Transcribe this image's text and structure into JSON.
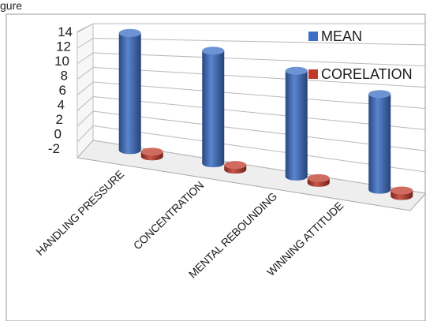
{
  "figure": {
    "caption": "gure"
  },
  "chart_data": {
    "type": "bar",
    "title": "",
    "xlabel": "",
    "ylabel": "",
    "ylim": [
      -2,
      14
    ],
    "yticks": [
      "14",
      "12",
      "10",
      "8",
      "6",
      "4",
      "2",
      "0",
      "-2"
    ],
    "categories": [
      "HANDLING PRESSURE",
      "CONCENTRATION",
      "MENTAL REBOUNDING",
      "WINNING ATTITUDE"
    ],
    "series": [
      {
        "name": "MEAN",
        "color": "#3d6fc6",
        "values": [
          13.2,
          11.2,
          9.3,
          7.4
        ]
      },
      {
        "name": "CORELATION",
        "color": "#c0392b",
        "values": [
          0.6,
          0.55,
          0.5,
          0.55
        ]
      }
    ],
    "legend_position": "top-right",
    "grid": true,
    "style": "3d-column"
  }
}
